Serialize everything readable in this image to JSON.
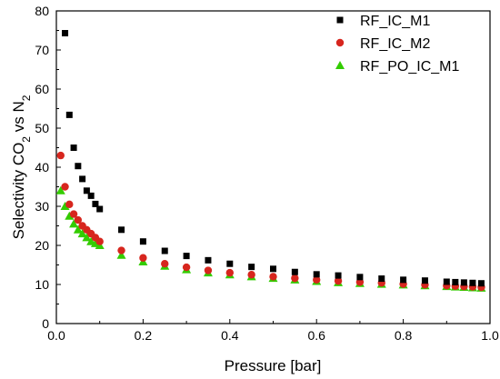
{
  "chart_data": {
    "type": "scatter",
    "xlabel": "Pressure [bar]",
    "ylabel": {
      "main": "Selectivity CO",
      "sub1": "2",
      "mid": " vs N",
      "sub2": "2"
    },
    "xlim": [
      0.0,
      1.0
    ],
    "ylim": [
      0,
      80
    ],
    "x_ticks": [
      "0.0",
      "0.2",
      "0.4",
      "0.6",
      "0.8",
      "1.0"
    ],
    "y_ticks": [
      "0",
      "10",
      "20",
      "30",
      "40",
      "50",
      "60",
      "70",
      "80"
    ],
    "legend_position": "top-right",
    "grid": false,
    "series": [
      {
        "name": "RF_IC_M1",
        "marker": "square",
        "color": "#000000",
        "x": [
          0.02,
          0.03,
          0.04,
          0.05,
          0.06,
          0.07,
          0.08,
          0.09,
          0.1,
          0.15,
          0.2,
          0.25,
          0.3,
          0.35,
          0.4,
          0.45,
          0.5,
          0.55,
          0.6,
          0.65,
          0.7,
          0.75,
          0.8,
          0.85,
          0.9,
          0.92,
          0.94,
          0.96,
          0.98
        ],
        "y": [
          74.3,
          53.4,
          45.0,
          40.3,
          37.0,
          34.0,
          32.7,
          30.6,
          29.3,
          24.0,
          21.0,
          18.6,
          17.3,
          16.2,
          15.3,
          14.5,
          14.0,
          13.2,
          12.6,
          12.3,
          11.9,
          11.5,
          11.2,
          11.0,
          10.7,
          10.6,
          10.5,
          10.4,
          10.3
        ]
      },
      {
        "name": "RF_IC_M2",
        "marker": "circle",
        "color": "#d7261e",
        "x": [
          0.01,
          0.02,
          0.03,
          0.04,
          0.05,
          0.06,
          0.07,
          0.08,
          0.09,
          0.1,
          0.15,
          0.2,
          0.25,
          0.3,
          0.35,
          0.4,
          0.45,
          0.5,
          0.55,
          0.6,
          0.65,
          0.7,
          0.75,
          0.8,
          0.85,
          0.9,
          0.92,
          0.94,
          0.96,
          0.98
        ],
        "y": [
          43.0,
          35.0,
          30.5,
          28.0,
          26.5,
          25.0,
          24.0,
          23.0,
          22.0,
          21.0,
          18.7,
          16.8,
          15.3,
          14.4,
          13.6,
          13.0,
          12.5,
          12.0,
          11.6,
          11.2,
          10.9,
          10.6,
          10.4,
          10.1,
          9.9,
          9.7,
          9.6,
          9.5,
          9.4,
          9.3
        ]
      },
      {
        "name": "RF_PO_IC_M1",
        "marker": "triangle",
        "color": "#33cc00",
        "x": [
          0.01,
          0.02,
          0.03,
          0.04,
          0.05,
          0.06,
          0.07,
          0.08,
          0.09,
          0.1,
          0.15,
          0.2,
          0.25,
          0.3,
          0.35,
          0.4,
          0.45,
          0.5,
          0.55,
          0.6,
          0.65,
          0.7,
          0.75,
          0.8,
          0.85,
          0.9,
          0.92,
          0.94,
          0.96,
          0.98
        ],
        "y": [
          34.0,
          30.0,
          27.5,
          25.5,
          24.0,
          23.0,
          22.0,
          21.0,
          20.5,
          20.0,
          17.5,
          15.8,
          14.7,
          13.8,
          13.0,
          12.5,
          12.0,
          11.6,
          11.2,
          10.8,
          10.5,
          10.3,
          10.1,
          9.9,
          9.7,
          9.5,
          9.4,
          9.3,
          9.2,
          9.1
        ]
      }
    ]
  }
}
